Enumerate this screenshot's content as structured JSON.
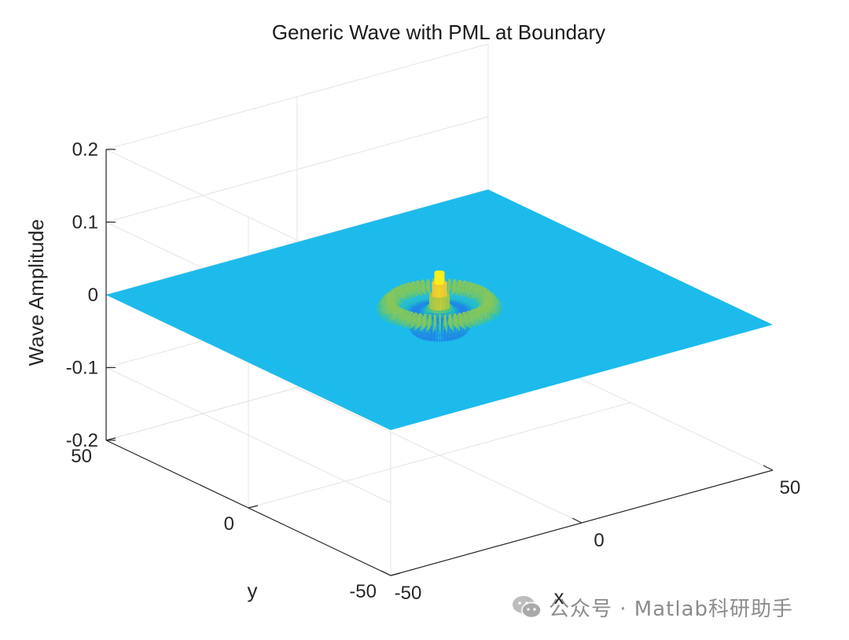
{
  "chart_data": {
    "type": "surface3d",
    "title": "Generic Wave with PML at Boundary",
    "xlabel": "x",
    "ylabel": "y",
    "zlabel": "Wave Amplitude",
    "xlim": [
      -50,
      50
    ],
    "ylim": [
      -50,
      50
    ],
    "zlim": [
      -0.2,
      0.2
    ],
    "x_ticks": [
      {
        "value": -50,
        "label": "-50"
      },
      {
        "value": 0,
        "label": "0"
      },
      {
        "value": 50,
        "label": "50"
      }
    ],
    "y_ticks": [
      {
        "value": -50,
        "label": "-50"
      },
      {
        "value": 0,
        "label": "0"
      },
      {
        "value": 50,
        "label": "50"
      }
    ],
    "z_ticks": [
      {
        "value": 0.2,
        "label": "0.2"
      },
      {
        "value": 0.1,
        "label": "0.1"
      },
      {
        "value": 0,
        "label": "0"
      },
      {
        "value": -0.1,
        "label": "-0.1"
      },
      {
        "value": -0.2,
        "label": "-0.2"
      }
    ],
    "grid": true,
    "surface": {
      "description": "Concentric circular ripples around origin on a flat plane",
      "center": [
        0,
        0
      ],
      "peak_amplitude": 0.055,
      "ring_radii": [
        3,
        7,
        11
      ],
      "ring_amplitudes": [
        0.055,
        0.02,
        -0.01
      ],
      "plane_color": "#1cbbec",
      "colormap": "parula"
    }
  },
  "watermark": {
    "text": "公众号 · Matlab科研助手"
  }
}
